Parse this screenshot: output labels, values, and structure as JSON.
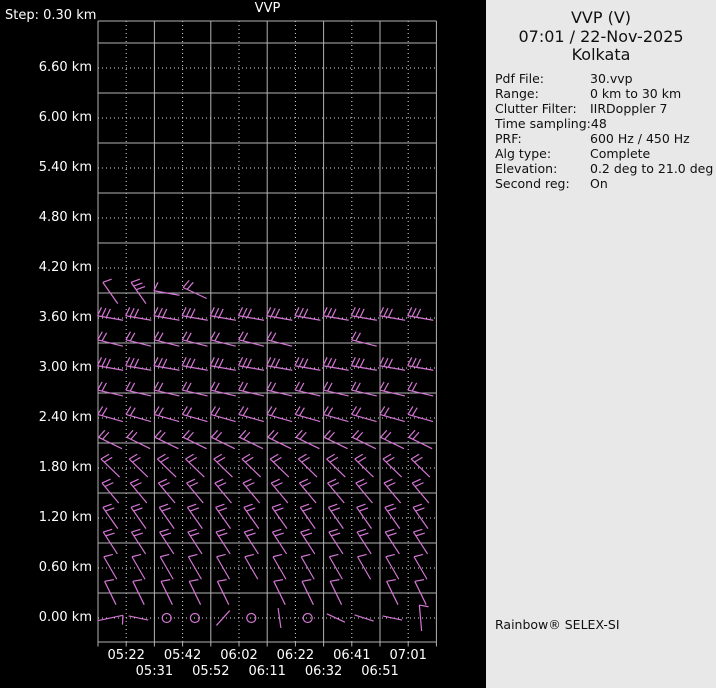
{
  "window": {
    "left_background": "#000000",
    "panel_background": "#e8e8e8",
    "grid_solid_color": "#b2b2b2",
    "grid_dotted_color": "#dcdcdc",
    "axis_text_color": "#ffffff"
  },
  "chart_data": {
    "type": "wind-barb-time-height",
    "title": "VVP",
    "barb_color": "#d476d4",
    "y_axis": {
      "step_label": "Step: 0.30 km",
      "labels": [
        "6.60 km",
        "6.00 km",
        "5.40 km",
        "4.80 km",
        "4.20 km",
        "3.60 km",
        "3.00 km",
        "2.40 km",
        "1.80 km",
        "1.20 km",
        "0.60 km",
        "0.00 km"
      ],
      "minor_step_km": 0.3
    },
    "x_axis": {
      "row1": [
        "05:22",
        "05:42",
        "06:02",
        "06:22",
        "06:41",
        "07:01"
      ],
      "row2": [
        "05:31",
        "05:52",
        "06:11",
        "06:32",
        "06:51"
      ]
    },
    "levels": [
      {
        "height_km": 3.9,
        "items": [
          {
            "col": 0,
            "type": "barb",
            "angle": 55,
            "feathers": 1
          },
          {
            "col": 1,
            "type": "barb",
            "angle": 55,
            "feathers": 3
          },
          {
            "col": 2,
            "type": "barb",
            "angle": 10,
            "feathers": 1
          },
          {
            "col": 3,
            "type": "barb",
            "angle": 25,
            "feathers": 2
          }
        ]
      },
      {
        "height_km": 3.6,
        "angle": 10,
        "feathers": 3,
        "cols": [
          0,
          1,
          2,
          3,
          4,
          5,
          6,
          7,
          8,
          9,
          10,
          11
        ]
      },
      {
        "height_km": 3.3,
        "angle": 14,
        "feathers": 2,
        "cols": [
          0,
          1,
          2,
          3,
          4,
          5,
          6,
          9
        ]
      },
      {
        "height_km": 3.0,
        "angle": 10,
        "feathers": 3,
        "cols": [
          0,
          1,
          2,
          3,
          4,
          5,
          6,
          7,
          8,
          9,
          10,
          11
        ]
      },
      {
        "height_km": 2.7,
        "angle": 13,
        "feathers": 2,
        "cols": [
          0,
          1,
          2,
          3,
          4,
          5,
          6,
          7,
          8,
          9,
          10,
          11
        ]
      },
      {
        "height_km": 2.4,
        "angle": 16,
        "feathers": 2,
        "cols": [
          0,
          1,
          2,
          3,
          4,
          5,
          6,
          7,
          8,
          9,
          10,
          11
        ]
      },
      {
        "height_km": 2.1,
        "angle": 26,
        "feathers": 2,
        "cols": [
          0,
          1,
          2,
          3,
          4,
          5,
          6,
          7,
          8,
          9,
          10,
          11
        ]
      },
      {
        "height_km": 1.8,
        "angle": 44,
        "feathers": 2,
        "cols": [
          0,
          1,
          2,
          3,
          4,
          5,
          6,
          7,
          8,
          9,
          10,
          11
        ]
      },
      {
        "height_km": 1.5,
        "angle": 50,
        "feathers": 2,
        "cols": [
          0,
          1,
          2,
          3,
          4,
          5,
          6,
          7,
          8,
          9,
          10,
          11
        ]
      },
      {
        "height_km": 1.2,
        "angle": 55,
        "feathers": 2,
        "cols": [
          0,
          1,
          2,
          3,
          4,
          5,
          6,
          7,
          8,
          9,
          10,
          11
        ]
      },
      {
        "height_km": 0.9,
        "angle": 57,
        "feathers": 2,
        "cols": [
          0,
          1,
          2,
          3,
          4,
          5,
          6,
          7,
          8,
          9,
          10,
          11
        ]
      },
      {
        "height_km": 0.6,
        "angle": 60,
        "feathers": 1,
        "cols": [
          0,
          1,
          2,
          3,
          4,
          5,
          6,
          7,
          8,
          9,
          10,
          11
        ]
      },
      {
        "height_km": 0.3,
        "angle": 64,
        "feathers": 1,
        "cols": [
          0,
          1,
          2,
          3,
          4,
          6,
          7,
          8,
          10,
          11
        ]
      },
      {
        "height_km": 0.0,
        "items": [
          {
            "col": 0,
            "type": "barb",
            "angle": 168,
            "feathers": 1
          },
          {
            "col": 1,
            "type": "seg",
            "angle": 12
          },
          {
            "col": 2,
            "type": "circle"
          },
          {
            "col": 3,
            "type": "circle"
          },
          {
            "col": 4,
            "type": "seg",
            "angle": -48
          },
          {
            "col": 5,
            "type": "circle"
          },
          {
            "col": 6,
            "type": "seg",
            "angle": 82
          },
          {
            "col": 7,
            "type": "circle"
          },
          {
            "col": 8,
            "type": "seg",
            "angle": 25
          },
          {
            "col": 9,
            "type": "seg",
            "angle": 18
          },
          {
            "col": 10,
            "type": "seg",
            "angle": 12
          },
          {
            "col": 11,
            "type": "barb",
            "angle": 85,
            "feathers": 1
          }
        ]
      }
    ]
  },
  "panel": {
    "title": "VVP (V)",
    "datetime": "07:01 / 22-Nov-2025",
    "site": "Kolkata",
    "fields": [
      {
        "label": "Pdf File:",
        "value": "30.vvp"
      },
      {
        "label": "Range:",
        "value": "0 km to 30 km"
      },
      {
        "label": "Clutter Filter:",
        "value": "IIRDoppler 7"
      },
      {
        "label": "Time sampling:",
        "value": "48"
      },
      {
        "label": "PRF:",
        "value": "600 Hz / 450 Hz"
      },
      {
        "label": "Alg type:",
        "value": "Complete"
      },
      {
        "label": "Elevation:",
        "value": "0.2 deg to 21.0 deg"
      },
      {
        "label": "Second reg:",
        "value": "On"
      }
    ],
    "brand": "Rainbow® SELEX-SI"
  }
}
